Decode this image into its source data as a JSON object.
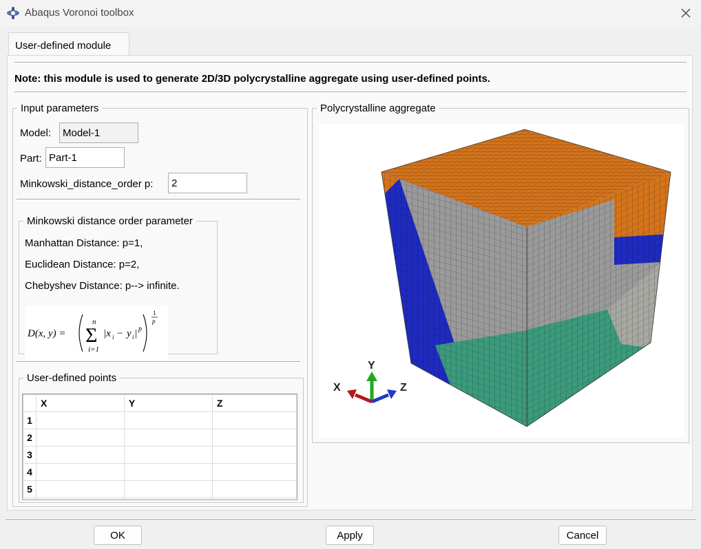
{
  "window": {
    "title": "Abaqus Voronoi toolbox"
  },
  "tabs": [
    {
      "label": "User-defined module"
    }
  ],
  "note": "Note: this module is used to generate 2D/3D polycrystalline aggregate using user-defined points.",
  "input_parameters": {
    "title": "Input parameters",
    "model": {
      "label": "Model:",
      "value": "Model-1"
    },
    "part": {
      "label": "Part:",
      "value": "Part-1"
    },
    "minkowski": {
      "label": "Minkowski_distance_order p:",
      "value": "2"
    }
  },
  "minkowski_info": {
    "title": "Minkowski distance order parameter",
    "lines": [
      "Manhattan Distance: p=1,",
      "Euclidean Distance: p=2,",
      "Chebyshev Distance: p--> infinite."
    ],
    "formula": "D(x,y) = (Σ_{i=1}^{n} |x_i − y_i|^p)^{1/p}"
  },
  "points": {
    "title": "User-defined points",
    "columns": [
      "X",
      "Y",
      "Z"
    ],
    "rows": [
      "1",
      "2",
      "3",
      "4",
      "5"
    ]
  },
  "aggregate": {
    "title": "Polycrystalline aggregate",
    "triad": {
      "x": "X",
      "y": "Y",
      "z": "Z"
    },
    "colors": {
      "top": "#d4741c",
      "gray": "#9a9a9a",
      "blue": "#1f2bbf",
      "green": "#3c9a7c",
      "red": "#c8281e"
    }
  },
  "buttons": {
    "ok": "OK",
    "apply": "Apply",
    "cancel": "Cancel"
  },
  "icons": {
    "app": "abaqus-logo-icon",
    "close": "close-icon"
  }
}
